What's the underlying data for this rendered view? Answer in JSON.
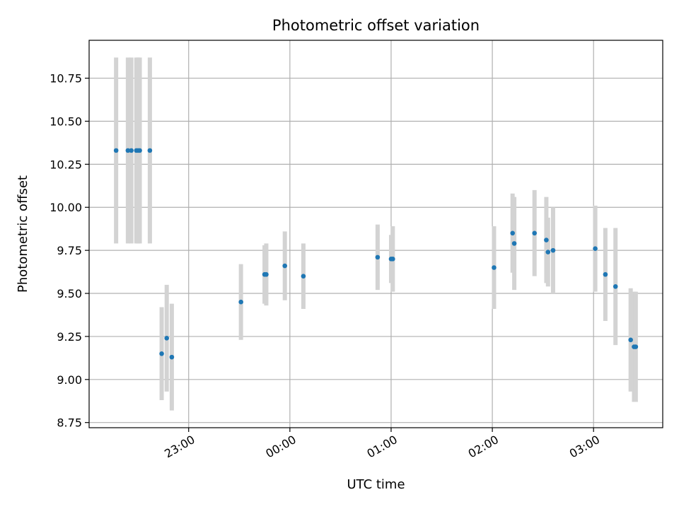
{
  "chart_data": {
    "type": "scatter",
    "title": "Photometric offset variation",
    "xlabel": "UTC time",
    "ylabel": "Photometric offset",
    "xlim": [
      "22:01",
      "03:41"
    ],
    "ylim": [
      8.72,
      10.97
    ],
    "xticks": [
      "23:00",
      "00:00",
      "01:00",
      "02:00",
      "03:00"
    ],
    "yticks": [
      8.75,
      9.0,
      9.25,
      9.5,
      9.75,
      10.0,
      10.25,
      10.5,
      10.75
    ],
    "grid": true,
    "point_color": "#1f77b4",
    "errorbar_color": "#d3d3d3",
    "points": [
      {
        "t": "22:17",
        "y": 10.33,
        "err": 0.54
      },
      {
        "t": "22:24",
        "y": 10.33,
        "err": 0.54
      },
      {
        "t": "22:26",
        "y": 10.33,
        "err": 0.54
      },
      {
        "t": "22:29",
        "y": 10.33,
        "err": 0.54
      },
      {
        "t": "22:30",
        "y": 10.33,
        "err": 0.54
      },
      {
        "t": "22:31",
        "y": 10.33,
        "err": 0.54
      },
      {
        "t": "22:37",
        "y": 10.33,
        "err": 0.54
      },
      {
        "t": "22:44",
        "y": 9.15,
        "err": 0.27
      },
      {
        "t": "22:47",
        "y": 9.24,
        "err": 0.31
      },
      {
        "t": "22:50",
        "y": 9.13,
        "err": 0.31
      },
      {
        "t": "23:31",
        "y": 9.45,
        "err": 0.22
      },
      {
        "t": "23:45",
        "y": 9.61,
        "err": 0.17
      },
      {
        "t": "23:46",
        "y": 9.61,
        "err": 0.18
      },
      {
        "t": "23:57",
        "y": 9.66,
        "err": 0.2
      },
      {
        "t": "00:08",
        "y": 9.6,
        "err": 0.19
      },
      {
        "t": "00:52",
        "y": 9.71,
        "err": 0.19
      },
      {
        "t": "01:00",
        "y": 9.7,
        "err": 0.14
      },
      {
        "t": "01:01",
        "y": 9.7,
        "err": 0.19
      },
      {
        "t": "02:01",
        "y": 9.65,
        "err": 0.24
      },
      {
        "t": "02:12",
        "y": 9.85,
        "err": 0.23
      },
      {
        "t": "02:13",
        "y": 9.79,
        "err": 0.27
      },
      {
        "t": "02:25",
        "y": 9.85,
        "err": 0.25
      },
      {
        "t": "02:32",
        "y": 9.81,
        "err": 0.25
      },
      {
        "t": "02:33",
        "y": 9.74,
        "err": 0.2
      },
      {
        "t": "02:36",
        "y": 9.75,
        "err": 0.25
      },
      {
        "t": "03:01",
        "y": 9.76,
        "err": 0.25
      },
      {
        "t": "03:07",
        "y": 9.61,
        "err": 0.27
      },
      {
        "t": "03:13",
        "y": 9.54,
        "err": 0.34
      },
      {
        "t": "03:22",
        "y": 9.23,
        "err": 0.3
      },
      {
        "t": "03:24",
        "y": 9.19,
        "err": 0.32
      },
      {
        "t": "03:25",
        "y": 9.19,
        "err": 0.32
      }
    ]
  }
}
